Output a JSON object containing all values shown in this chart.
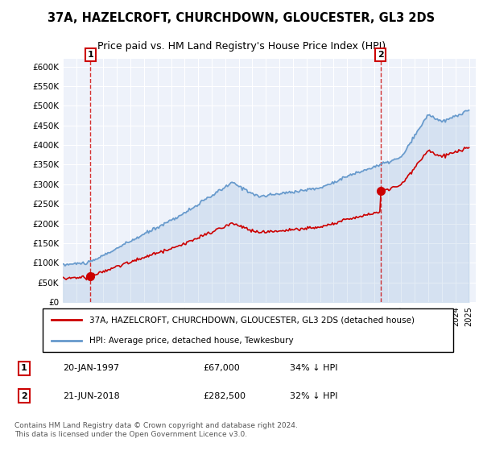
{
  "title": "37A, HAZELCROFT, CHURCHDOWN, GLOUCESTER, GL3 2DS",
  "subtitle": "Price paid vs. HM Land Registry's House Price Index (HPI)",
  "ylim": [
    0,
    620000
  ],
  "yticks": [
    0,
    50000,
    100000,
    150000,
    200000,
    250000,
    300000,
    350000,
    400000,
    450000,
    500000,
    550000,
    600000
  ],
  "ytick_labels": [
    "£0",
    "£50K",
    "£100K",
    "£150K",
    "£200K",
    "£250K",
    "£300K",
    "£350K",
    "£400K",
    "£450K",
    "£500K",
    "£550K",
    "£600K"
  ],
  "hpi_color": "#6699cc",
  "price_color": "#cc0000",
  "purchase1_date": 1997.05,
  "purchase1_price": 67000,
  "purchase2_date": 2018.47,
  "purchase2_price": 282500,
  "legend_line1": "37A, HAZELCROFT, CHURCHDOWN, GLOUCESTER, GL3 2DS (detached house)",
  "legend_line2": "HPI: Average price, detached house, Tewkesbury",
  "ann1_num": "1",
  "ann1_date": "20-JAN-1997",
  "ann1_price": "£67,000",
  "ann1_hpi": "34% ↓ HPI",
  "ann2_num": "2",
  "ann2_date": "21-JUN-2018",
  "ann2_price": "£282,500",
  "ann2_hpi": "32% ↓ HPI",
  "footnote": "Contains HM Land Registry data © Crown copyright and database right 2024.\nThis data is licensed under the Open Government Licence v3.0.",
  "plot_background": "#eef2fa",
  "grid_color": "#ffffff"
}
